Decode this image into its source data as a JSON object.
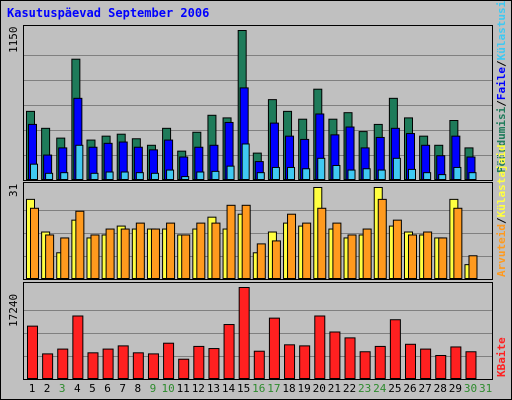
{
  "title": "Kasutuspäevad September 2006",
  "colors": {
    "background": "#c0c0c0",
    "title": "#0000ff",
    "grid": "#808080",
    "visits": "#1e7b5a",
    "pages": "#0000ff",
    "files": "#3fc9f2",
    "hits": "#ff9a1e",
    "sites": "#ffff40",
    "kbytes": "#ff2020",
    "weekday": "#000000",
    "weekend": "#2e8b2e"
  },
  "right_labels": {
    "visits": "Pöördumisi",
    "sep1": "/",
    "files": "Faile",
    "sep2": "/",
    "hits": "Külastusi"
  },
  "right_labels2": {
    "sites": "Külastajaid",
    "sep": "/",
    "hits_label": "Arvuteid"
  },
  "right_labels3": {
    "kbytes": "KBaite"
  },
  "chart_data": [
    {
      "type": "bar",
      "panel": "top",
      "ymax_label": "1150",
      "ylim": [
        0,
        1150
      ],
      "x": [
        1,
        2,
        3,
        4,
        5,
        6,
        7,
        8,
        9,
        10,
        11,
        12,
        13,
        14,
        15,
        16,
        17,
        18,
        19,
        20,
        21,
        22,
        23,
        24,
        25,
        26,
        27,
        28,
        29,
        30
      ],
      "series": [
        {
          "name": "Pöördumisi",
          "values": [
            530,
            400,
            325,
            930,
            310,
            340,
            355,
            320,
            270,
            400,
            225,
            370,
            500,
            480,
            1150,
            210,
            620,
            530,
            470,
            700,
            470,
            520,
            375,
            430,
            630,
            480,
            340,
            270,
            460,
            250
          ]
        },
        {
          "name": "Faile",
          "values": [
            430,
            195,
            250,
            630,
            255,
            285,
            295,
            255,
            235,
            310,
            180,
            255,
            270,
            445,
            710,
            145,
            440,
            340,
            315,
            510,
            350,
            410,
            250,
            330,
            400,
            360,
            270,
            190,
            340,
            180
          ]
        },
        {
          "name": "Külastusi",
          "values": [
            125,
            55,
            60,
            270,
            55,
            65,
            65,
            60,
            55,
            80,
            30,
            65,
            70,
            110,
            280,
            60,
            100,
            100,
            90,
            170,
            115,
            80,
            90,
            80,
            170,
            85,
            60,
            45,
            100,
            60
          ]
        }
      ]
    },
    {
      "type": "bar",
      "panel": "middle",
      "ymax_label": "31",
      "ylim": [
        0,
        31
      ],
      "x": [
        1,
        2,
        3,
        4,
        5,
        6,
        7,
        8,
        9,
        10,
        11,
        12,
        13,
        14,
        15,
        16,
        17,
        18,
        19,
        20,
        21,
        22,
        23,
        24,
        25,
        26,
        27,
        28,
        29,
        30
      ],
      "series": [
        {
          "name": "Külastajaid",
          "values": [
            27,
            16,
            9,
            20,
            14,
            15,
            18,
            17,
            17,
            17,
            15,
            17,
            21,
            17,
            22,
            9,
            16,
            19,
            18,
            31,
            17,
            14,
            15,
            31,
            18,
            16,
            15,
            14,
            27,
            5
          ]
        },
        {
          "name": "Arvuteid",
          "values": [
            24,
            15,
            14,
            23,
            15,
            17,
            17,
            19,
            17,
            19,
            15,
            19,
            19,
            25,
            25,
            12,
            13,
            22,
            19,
            24,
            19,
            15,
            17,
            27,
            20,
            15,
            16,
            14,
            24,
            8
          ]
        }
      ]
    },
    {
      "type": "bar",
      "panel": "bottom",
      "ymax_label": "17240",
      "ylim": [
        0,
        17240
      ],
      "x": [
        1,
        2,
        3,
        4,
        5,
        6,
        7,
        8,
        9,
        10,
        11,
        12,
        13,
        14,
        15,
        16,
        17,
        18,
        19,
        20,
        21,
        22,
        23,
        24,
        25,
        26,
        27,
        28,
        29,
        30
      ],
      "series": [
        {
          "name": "KBaite",
          "values": [
            10000,
            4800,
            5700,
            11900,
            5000,
            5700,
            6300,
            5000,
            4800,
            6800,
            3800,
            6200,
            5800,
            10300,
            17240,
            5300,
            11500,
            6500,
            6300,
            11900,
            8900,
            7800,
            5200,
            6200,
            11200,
            6600,
            5700,
            4500,
            6100,
            5200
          ]
        }
      ]
    }
  ],
  "days": [
    {
      "label": "1",
      "weekend": false
    },
    {
      "label": "2",
      "weekend": false
    },
    {
      "label": "3",
      "weekend": true
    },
    {
      "label": "4",
      "weekend": false
    },
    {
      "label": "5",
      "weekend": false
    },
    {
      "label": "6",
      "weekend": false
    },
    {
      "label": "7",
      "weekend": false
    },
    {
      "label": "8",
      "weekend": false
    },
    {
      "label": "9",
      "weekend": true
    },
    {
      "label": "10",
      "weekend": true
    },
    {
      "label": "11",
      "weekend": false
    },
    {
      "label": "12",
      "weekend": false
    },
    {
      "label": "13",
      "weekend": false
    },
    {
      "label": "14",
      "weekend": false
    },
    {
      "label": "15",
      "weekend": false
    },
    {
      "label": "16",
      "weekend": true
    },
    {
      "label": "17",
      "weekend": true
    },
    {
      "label": "18",
      "weekend": false
    },
    {
      "label": "19",
      "weekend": false
    },
    {
      "label": "20",
      "weekend": false
    },
    {
      "label": "21",
      "weekend": false
    },
    {
      "label": "22",
      "weekend": false
    },
    {
      "label": "23",
      "weekend": true
    },
    {
      "label": "24",
      "weekend": true
    },
    {
      "label": "25",
      "weekend": false
    },
    {
      "label": "26",
      "weekend": false
    },
    {
      "label": "27",
      "weekend": false
    },
    {
      "label": "28",
      "weekend": false
    },
    {
      "label": "29",
      "weekend": false
    },
    {
      "label": "30",
      "weekend": true
    },
    {
      "label": "31",
      "weekend": true
    }
  ]
}
